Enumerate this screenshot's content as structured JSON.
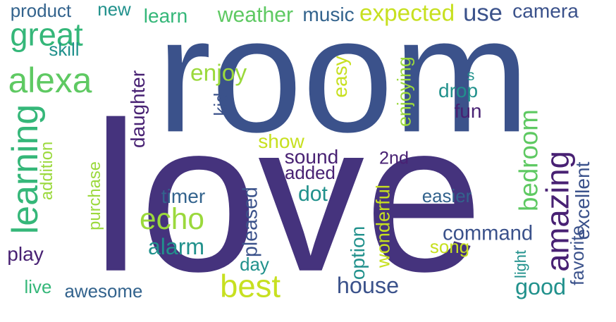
{
  "word_cloud": {
    "palette": {
      "dark_purple": "#45337d",
      "indigo": "#3b528b",
      "blue": "#33638d",
      "teal": "#21918c",
      "green": "#35b779",
      "light_green": "#5ec962",
      "lime": "#9bd93c",
      "yellow": "#c7e020",
      "deep_violet": "#482173"
    },
    "words": [
      {
        "text": "love",
        "color": "#45337d"
      },
      {
        "text": "room",
        "color": "#3b528b"
      },
      {
        "text": "great",
        "color": "#35b779"
      },
      {
        "text": "alexa",
        "color": "#5ec962"
      },
      {
        "text": "learning",
        "color": "#35b779"
      },
      {
        "text": "product",
        "color": "#33638d"
      },
      {
        "text": "skill",
        "color": "#21918c"
      },
      {
        "text": "new",
        "color": "#21918c"
      },
      {
        "text": "learn",
        "color": "#35b779"
      },
      {
        "text": "weather",
        "color": "#5ec962"
      },
      {
        "text": "music",
        "color": "#33638d"
      },
      {
        "text": "expected",
        "color": "#c7e020"
      },
      {
        "text": "use",
        "color": "#3b528b"
      },
      {
        "text": "camera",
        "color": "#3b528b"
      },
      {
        "text": "enjoy",
        "color": "#9bd93c"
      },
      {
        "text": "kid",
        "color": "#3b528b"
      },
      {
        "text": "daughter",
        "color": "#482173"
      },
      {
        "text": "easy",
        "color": "#c7e020"
      },
      {
        "text": "enjoying",
        "color": "#9bd93c"
      },
      {
        "text": "s",
        "color": "#21918c"
      },
      {
        "text": "drop",
        "color": "#21918c"
      },
      {
        "text": "fun",
        "color": "#482173"
      },
      {
        "text": "show",
        "color": "#c7e020"
      },
      {
        "text": "sound",
        "color": "#482173"
      },
      {
        "text": "added",
        "color": "#482173"
      },
      {
        "text": "2nd",
        "color": "#482173"
      },
      {
        "text": "bedroom",
        "color": "#5ec962"
      },
      {
        "text": "amazing",
        "color": "#482173"
      },
      {
        "text": "excellent",
        "color": "#3b528b"
      },
      {
        "text": "addition",
        "color": "#9bd93c"
      },
      {
        "text": "purchase",
        "color": "#9bd93c"
      },
      {
        "text": "timer",
        "color": "#33638d"
      },
      {
        "text": "echo",
        "color": "#9bd93c"
      },
      {
        "text": "dot",
        "color": "#21918c"
      },
      {
        "text": "easier",
        "color": "#33638d"
      },
      {
        "text": "alarm",
        "color": "#21918c"
      },
      {
        "text": "pleased",
        "color": "#3b528b"
      },
      {
        "text": "wonderful",
        "color": "#c7e020"
      },
      {
        "text": "option",
        "color": "#21918c"
      },
      {
        "text": "command",
        "color": "#3b528b"
      },
      {
        "text": "song",
        "color": "#c7e020"
      },
      {
        "text": "light",
        "color": "#21918c"
      },
      {
        "text": "favorite",
        "color": "#3b528b"
      },
      {
        "text": "play",
        "color": "#482173"
      },
      {
        "text": "day",
        "color": "#21918c"
      },
      {
        "text": "best",
        "color": "#c7e020"
      },
      {
        "text": "house",
        "color": "#3b528b"
      },
      {
        "text": "good",
        "color": "#21918c"
      },
      {
        "text": "live",
        "color": "#35b779"
      },
      {
        "text": "awesome",
        "color": "#33638d"
      }
    ]
  }
}
